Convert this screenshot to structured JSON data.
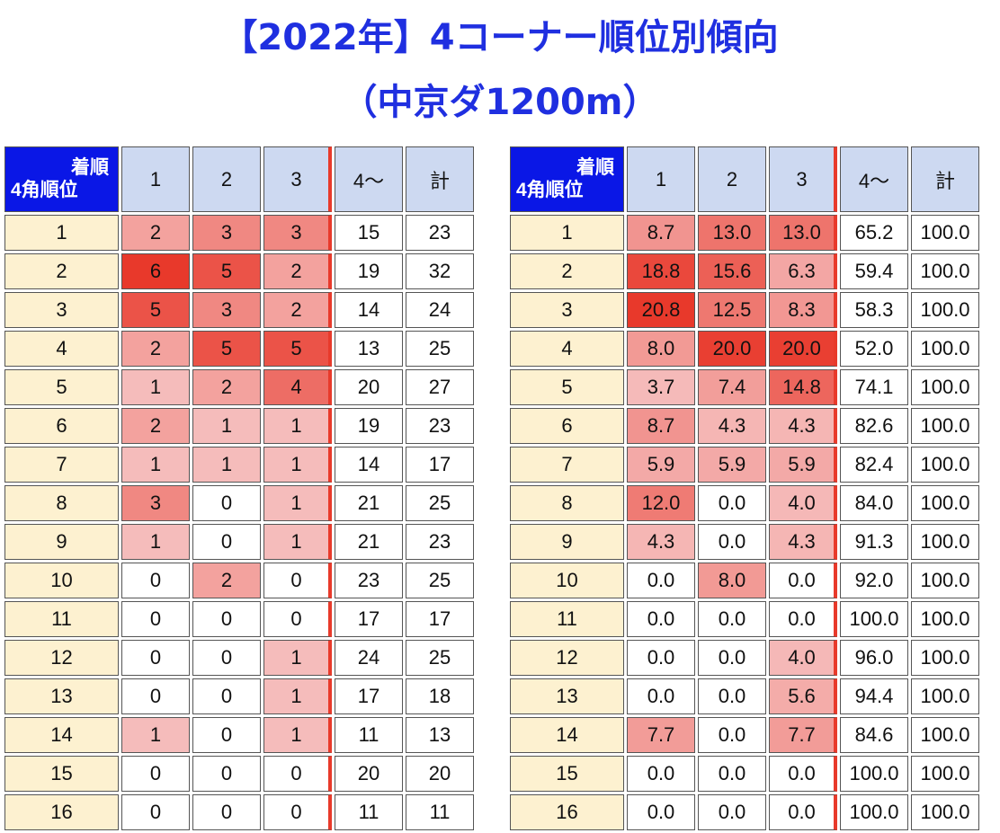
{
  "title_line1": "【2022年】4コーナー順位別傾向",
  "title_line2": "（中京ダ1200m）",
  "colors": {
    "title": "#1f2fe0",
    "corner_bg": "#0a17e6",
    "header_bg": "#cdd9f1",
    "rowhead_bg": "#fdf1d0",
    "heat": "#e8392b",
    "divider": "#e83a2b"
  },
  "chart_data": [
    {
      "type": "table",
      "corner_top": "着順",
      "corner_bottom": "4角順位",
      "columns": [
        "1",
        "2",
        "3",
        "4〜",
        "計"
      ],
      "rows": [
        {
          "label": "1",
          "values": [
            "2",
            "3",
            "3",
            "15",
            "23"
          ]
        },
        {
          "label": "2",
          "values": [
            "6",
            "5",
            "2",
            "19",
            "32"
          ]
        },
        {
          "label": "3",
          "values": [
            "5",
            "3",
            "2",
            "14",
            "24"
          ]
        },
        {
          "label": "4",
          "values": [
            "2",
            "5",
            "5",
            "13",
            "25"
          ]
        },
        {
          "label": "5",
          "values": [
            "1",
            "2",
            "4",
            "20",
            "27"
          ]
        },
        {
          "label": "6",
          "values": [
            "2",
            "1",
            "1",
            "19",
            "23"
          ]
        },
        {
          "label": "7",
          "values": [
            "1",
            "1",
            "1",
            "14",
            "17"
          ]
        },
        {
          "label": "8",
          "values": [
            "3",
            "0",
            "1",
            "21",
            "25"
          ]
        },
        {
          "label": "9",
          "values": [
            "1",
            "0",
            "1",
            "21",
            "23"
          ]
        },
        {
          "label": "10",
          "values": [
            "0",
            "2",
            "0",
            "23",
            "25"
          ]
        },
        {
          "label": "11",
          "values": [
            "0",
            "0",
            "0",
            "17",
            "17"
          ]
        },
        {
          "label": "12",
          "values": [
            "0",
            "0",
            "1",
            "24",
            "25"
          ]
        },
        {
          "label": "13",
          "values": [
            "0",
            "0",
            "1",
            "17",
            "18"
          ]
        },
        {
          "label": "14",
          "values": [
            "1",
            "0",
            "1",
            "11",
            "13"
          ]
        },
        {
          "label": "15",
          "values": [
            "0",
            "0",
            "0",
            "20",
            "20"
          ]
        },
        {
          "label": "16",
          "values": [
            "0",
            "0",
            "0",
            "11",
            "11"
          ]
        }
      ]
    },
    {
      "type": "table",
      "corner_top": "着順",
      "corner_bottom": "4角順位",
      "columns": [
        "1",
        "2",
        "3",
        "4〜",
        "計"
      ],
      "rows": [
        {
          "label": "1",
          "values": [
            "8.7",
            "13.0",
            "13.0",
            "65.2",
            "100.0"
          ]
        },
        {
          "label": "2",
          "values": [
            "18.8",
            "15.6",
            "6.3",
            "59.4",
            "100.0"
          ]
        },
        {
          "label": "3",
          "values": [
            "20.8",
            "12.5",
            "8.3",
            "58.3",
            "100.0"
          ]
        },
        {
          "label": "4",
          "values": [
            "8.0",
            "20.0",
            "20.0",
            "52.0",
            "100.0"
          ]
        },
        {
          "label": "5",
          "values": [
            "3.7",
            "7.4",
            "14.8",
            "74.1",
            "100.0"
          ]
        },
        {
          "label": "6",
          "values": [
            "8.7",
            "4.3",
            "4.3",
            "82.6",
            "100.0"
          ]
        },
        {
          "label": "7",
          "values": [
            "5.9",
            "5.9",
            "5.9",
            "82.4",
            "100.0"
          ]
        },
        {
          "label": "8",
          "values": [
            "12.0",
            "0.0",
            "4.0",
            "84.0",
            "100.0"
          ]
        },
        {
          "label": "9",
          "values": [
            "4.3",
            "0.0",
            "4.3",
            "91.3",
            "100.0"
          ]
        },
        {
          "label": "10",
          "values": [
            "0.0",
            "8.0",
            "0.0",
            "92.0",
            "100.0"
          ]
        },
        {
          "label": "11",
          "values": [
            "0.0",
            "0.0",
            "0.0",
            "100.0",
            "100.0"
          ]
        },
        {
          "label": "12",
          "values": [
            "0.0",
            "0.0",
            "4.0",
            "96.0",
            "100.0"
          ]
        },
        {
          "label": "13",
          "values": [
            "0.0",
            "0.0",
            "5.6",
            "94.4",
            "100.0"
          ]
        },
        {
          "label": "14",
          "values": [
            "7.7",
            "0.0",
            "7.7",
            "84.6",
            "100.0"
          ]
        },
        {
          "label": "15",
          "values": [
            "0.0",
            "0.0",
            "0.0",
            "100.0",
            "100.0"
          ]
        },
        {
          "label": "16",
          "values": [
            "0.0",
            "0.0",
            "0.0",
            "100.0",
            "100.0"
          ]
        }
      ]
    }
  ]
}
